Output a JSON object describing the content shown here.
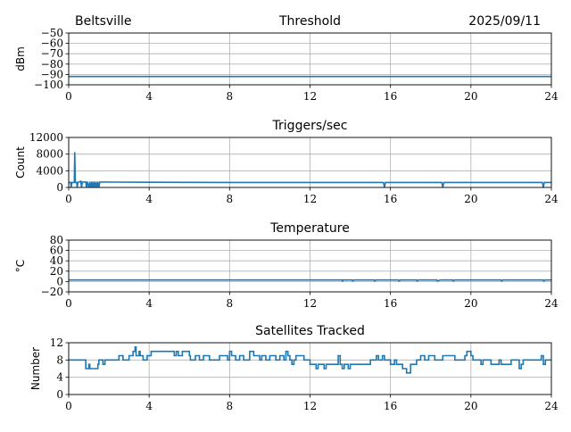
{
  "header": {
    "station": "Beltsville",
    "date": "2025/09/11"
  },
  "line_color": "#1f77b4",
  "chart_data": [
    {
      "type": "line",
      "title": "Threshold",
      "ylabel": "dBm",
      "xlim": [
        0,
        24
      ],
      "ylim": [
        -100,
        -50
      ],
      "xticks": [
        "0",
        "4",
        "8",
        "12",
        "16",
        "20",
        "24"
      ],
      "yticks": [
        "-50",
        "-60",
        "-70",
        "-80",
        "-90",
        "-100"
      ],
      "ytick_values": [
        -50,
        -60,
        -70,
        -80,
        -90,
        -100
      ],
      "grid": true,
      "points": [
        [
          0,
          -92
        ],
        [
          24,
          -92
        ]
      ]
    },
    {
      "type": "line",
      "title": "Triggers/sec",
      "ylabel": "Count",
      "xlim": [
        0,
        24
      ],
      "ylim": [
        0,
        12000
      ],
      "xticks": [
        "0",
        "4",
        "8",
        "12",
        "16",
        "20",
        "24"
      ],
      "yticks": [
        "12000",
        "8000",
        "4000",
        "0"
      ],
      "ytick_values": [
        12000,
        8000,
        4000,
        0
      ],
      "grid": true,
      "points": [
        [
          0,
          1200
        ],
        [
          0.1,
          1200
        ],
        [
          0.12,
          0
        ],
        [
          0.16,
          1200
        ],
        [
          0.28,
          1200
        ],
        [
          0.3,
          8500
        ],
        [
          0.33,
          1200
        ],
        [
          0.4,
          1200
        ],
        [
          0.42,
          0
        ],
        [
          0.46,
          1200
        ],
        [
          0.6,
          1500
        ],
        [
          0.64,
          0
        ],
        [
          0.68,
          1300
        ],
        [
          0.85,
          1300
        ],
        [
          0.88,
          0
        ],
        [
          0.92,
          1400
        ],
        [
          1.0,
          0
        ],
        [
          1.05,
          1400
        ],
        [
          1.1,
          0
        ],
        [
          1.15,
          1400
        ],
        [
          1.2,
          0
        ],
        [
          1.25,
          1400
        ],
        [
          1.3,
          0
        ],
        [
          1.35,
          1400
        ],
        [
          1.4,
          0
        ],
        [
          1.45,
          1400
        ],
        [
          1.5,
          0
        ],
        [
          1.55,
          1300
        ],
        [
          4,
          1250
        ],
        [
          8,
          1200
        ],
        [
          12,
          1200
        ],
        [
          15.65,
          1200
        ],
        [
          15.7,
          0
        ],
        [
          15.75,
          1200
        ],
        [
          18.55,
          1200
        ],
        [
          18.6,
          0
        ],
        [
          18.65,
          1200
        ],
        [
          23.55,
          1200
        ],
        [
          23.6,
          0
        ],
        [
          23.65,
          1200
        ],
        [
          24,
          1200
        ]
      ]
    },
    {
      "type": "line",
      "title": "Temperature",
      "ylabel": "°C",
      "xlim": [
        0,
        24
      ],
      "ylim": [
        -20,
        80
      ],
      "xticks": [
        "0",
        "4",
        "8",
        "12",
        "16",
        "20",
        "24"
      ],
      "yticks": [
        "80",
        "60",
        "40",
        "20",
        "0",
        "-20"
      ],
      "ytick_values": [
        80,
        60,
        40,
        20,
        0,
        -20
      ],
      "grid": true,
      "points": [
        [
          0,
          3
        ],
        [
          13.6,
          3
        ],
        [
          13.62,
          1
        ],
        [
          13.66,
          3
        ],
        [
          14.1,
          3
        ],
        [
          14.12,
          1
        ],
        [
          14.2,
          3
        ],
        [
          15.2,
          3
        ],
        [
          15.22,
          1
        ],
        [
          15.3,
          3
        ],
        [
          16.4,
          3
        ],
        [
          16.42,
          1
        ],
        [
          16.5,
          3
        ],
        [
          17.3,
          3
        ],
        [
          17.32,
          1
        ],
        [
          17.4,
          3
        ],
        [
          18.3,
          3
        ],
        [
          18.32,
          1
        ],
        [
          18.5,
          3
        ],
        [
          19.1,
          3
        ],
        [
          19.12,
          1
        ],
        [
          19.2,
          3
        ],
        [
          21.5,
          3
        ],
        [
          21.52,
          1
        ],
        [
          21.6,
          3
        ],
        [
          23.6,
          3
        ],
        [
          23.62,
          1
        ],
        [
          23.7,
          3
        ],
        [
          24,
          3
        ]
      ]
    },
    {
      "type": "line",
      "title": "Satellites Tracked",
      "ylabel": "Number",
      "xlim": [
        0,
        24
      ],
      "ylim": [
        0,
        12
      ],
      "xticks": [
        "0",
        "4",
        "8",
        "12",
        "16",
        "20",
        "24"
      ],
      "yticks": [
        "12",
        "8",
        "4",
        "0"
      ],
      "ytick_values": [
        12,
        8,
        4,
        0
      ],
      "grid": true,
      "step": true,
      "points": [
        [
          0,
          8
        ],
        [
          0.85,
          6
        ],
        [
          1.0,
          7
        ],
        [
          1.05,
          6
        ],
        [
          1.45,
          7
        ],
        [
          1.5,
          8
        ],
        [
          1.7,
          7
        ],
        [
          1.8,
          8
        ],
        [
          2.5,
          9
        ],
        [
          2.7,
          8
        ],
        [
          3.0,
          9
        ],
        [
          3.2,
          10
        ],
        [
          3.3,
          11
        ],
        [
          3.35,
          9
        ],
        [
          3.5,
          10
        ],
        [
          3.55,
          9
        ],
        [
          3.7,
          8
        ],
        [
          3.9,
          9
        ],
        [
          4.1,
          10
        ],
        [
          5.25,
          9
        ],
        [
          5.35,
          10
        ],
        [
          5.45,
          9
        ],
        [
          5.65,
          10
        ],
        [
          6.0,
          9
        ],
        [
          6.05,
          8
        ],
        [
          6.3,
          9
        ],
        [
          6.5,
          8
        ],
        [
          6.7,
          9
        ],
        [
          7.0,
          8
        ],
        [
          7.5,
          9
        ],
        [
          7.9,
          8
        ],
        [
          8.0,
          10
        ],
        [
          8.1,
          9
        ],
        [
          8.3,
          8
        ],
        [
          8.5,
          9
        ],
        [
          8.7,
          8
        ],
        [
          9.0,
          10
        ],
        [
          9.2,
          9
        ],
        [
          9.5,
          8
        ],
        [
          9.6,
          9
        ],
        [
          9.8,
          8
        ],
        [
          10.0,
          9
        ],
        [
          10.3,
          8
        ],
        [
          10.5,
          9
        ],
        [
          10.7,
          8
        ],
        [
          10.8,
          10
        ],
        [
          10.9,
          9
        ],
        [
          11.0,
          8
        ],
        [
          11.1,
          7
        ],
        [
          11.2,
          8
        ],
        [
          11.3,
          9
        ],
        [
          11.7,
          8
        ],
        [
          12.0,
          7
        ],
        [
          12.3,
          6
        ],
        [
          12.4,
          7
        ],
        [
          12.7,
          6
        ],
        [
          12.8,
          7
        ],
        [
          13.4,
          9
        ],
        [
          13.5,
          7
        ],
        [
          13.6,
          6
        ],
        [
          13.7,
          7
        ],
        [
          13.9,
          6
        ],
        [
          14.0,
          7
        ],
        [
          15.0,
          8
        ],
        [
          15.3,
          9
        ],
        [
          15.4,
          8
        ],
        [
          15.6,
          9
        ],
        [
          15.7,
          8
        ],
        [
          16.0,
          7
        ],
        [
          16.2,
          8
        ],
        [
          16.3,
          7
        ],
        [
          16.6,
          6
        ],
        [
          16.8,
          5
        ],
        [
          17.0,
          7
        ],
        [
          17.3,
          8
        ],
        [
          17.5,
          9
        ],
        [
          17.7,
          8
        ],
        [
          17.9,
          9
        ],
        [
          18.2,
          8
        ],
        [
          18.6,
          9
        ],
        [
          19.2,
          8
        ],
        [
          19.7,
          9
        ],
        [
          19.8,
          10
        ],
        [
          20.0,
          9
        ],
        [
          20.1,
          8
        ],
        [
          20.5,
          7
        ],
        [
          20.6,
          8
        ],
        [
          21.0,
          7
        ],
        [
          21.4,
          8
        ],
        [
          21.5,
          7
        ],
        [
          22.0,
          8
        ],
        [
          22.4,
          6
        ],
        [
          22.5,
          7
        ],
        [
          22.6,
          8
        ],
        [
          23.5,
          9
        ],
        [
          23.6,
          7
        ],
        [
          23.7,
          8
        ],
        [
          24,
          8
        ]
      ]
    }
  ]
}
